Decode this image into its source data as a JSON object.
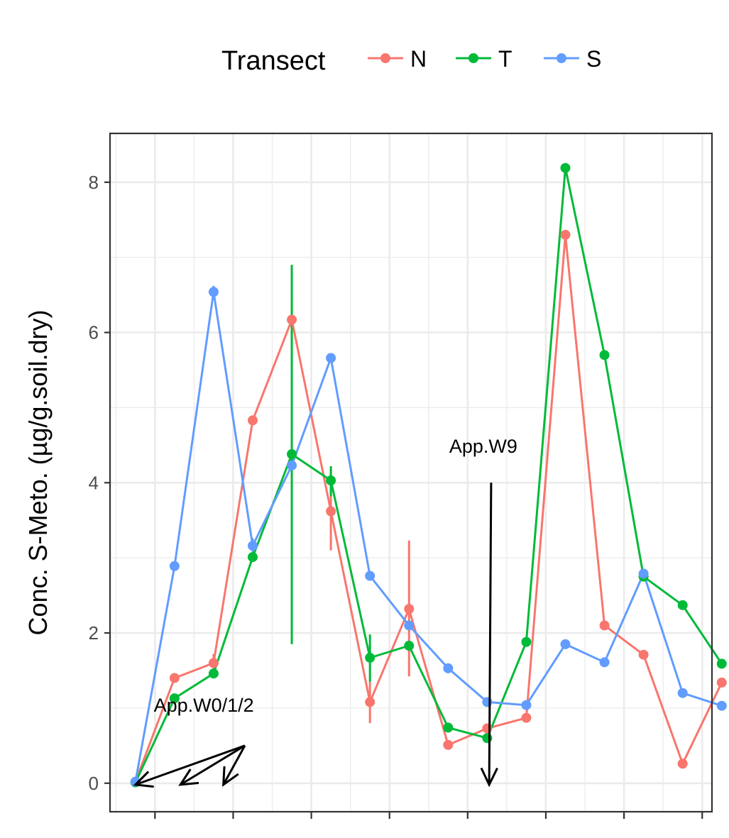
{
  "chart_data": {
    "type": "line",
    "ylabel": "Conc. S-Meto.  (µg/g.soil.dry)",
    "xlabel": "",
    "ylim": [
      -0.38,
      8.65
    ],
    "xlim": [
      0.35,
      15.75
    ],
    "yticks": [
      0,
      2,
      4,
      6,
      8
    ],
    "xticks": [
      1.5,
      3.5,
      5.5,
      7.5,
      9.5,
      11.5,
      13.5,
      15.5
    ],
    "grid": true,
    "legend": {
      "title": "Transect",
      "position": "top",
      "entries": [
        "N",
        "T",
        "S"
      ]
    },
    "colors": {
      "N": "#F8766D",
      "T": "#00BA38",
      "S": "#619CFF"
    },
    "series": [
      {
        "name": "N",
        "x": [
          1,
          2,
          3,
          4,
          5,
          6,
          7,
          8,
          9,
          10,
          11,
          12,
          13,
          14,
          15,
          16
        ],
        "y": [
          0.02,
          1.4,
          1.6,
          4.83,
          6.17,
          3.62,
          1.08,
          2.32,
          0.51,
          0.73,
          0.87,
          7.3,
          2.1,
          1.71,
          0.26,
          1.34
        ],
        "error": [
          null,
          null,
          [
            1.52,
            1.72
          ],
          null,
          [
            5.9,
            6.42
          ],
          [
            3.1,
            4.15
          ],
          [
            0.8,
            1.35
          ],
          [
            1.42,
            3.23
          ],
          null,
          null,
          null,
          null,
          null,
          null,
          null,
          null
        ]
      },
      {
        "name": "T",
        "x": [
          1,
          2,
          3,
          4,
          5,
          6,
          7,
          8,
          9,
          10,
          11,
          12,
          13,
          14,
          15,
          16
        ],
        "y": [
          0.01,
          1.13,
          1.46,
          3.01,
          4.38,
          4.03,
          1.67,
          1.83,
          0.74,
          0.6,
          1.88,
          8.19,
          5.7,
          2.75,
          2.37,
          1.59
        ],
        "error": [
          null,
          null,
          null,
          null,
          [
            1.85,
            6.9
          ],
          [
            3.82,
            4.22
          ],
          [
            1.35,
            1.98
          ],
          null,
          null,
          null,
          null,
          null,
          null,
          null,
          null,
          null
        ]
      },
      {
        "name": "S",
        "x": [
          1,
          2,
          3,
          4,
          5,
          6,
          7,
          8,
          9,
          10,
          11,
          12,
          13,
          14,
          15,
          16
        ],
        "y": [
          0.02,
          2.89,
          6.54,
          3.16,
          4.23,
          5.66,
          2.76,
          2.1,
          1.53,
          1.08,
          1.04,
          1.85,
          1.61,
          2.79,
          1.2,
          1.03
        ],
        "error": [
          null,
          null,
          [
            6.47,
            6.62
          ],
          [
            3.06,
            3.26
          ],
          null,
          null,
          null,
          null,
          null,
          null,
          null,
          null,
          null,
          null,
          null,
          null
        ]
      }
    ],
    "annotations": [
      {
        "label": "App.W0/1/2",
        "text_at": [
          2.75,
          0.95
        ],
        "arrows": [
          {
            "from": [
              3.8,
              0.5
            ],
            "to": [
              1.0,
              -0.02
            ]
          },
          {
            "from": [
              3.8,
              0.5
            ],
            "to": [
              2.15,
              -0.02
            ]
          },
          {
            "from": [
              3.8,
              0.5
            ],
            "to": [
              3.25,
              -0.02
            ]
          }
        ]
      },
      {
        "label": "App.W9",
        "text_at": [
          9.9,
          4.4
        ],
        "arrows": [
          {
            "from": [
              10.1,
              4.0
            ],
            "to": [
              10.05,
              -0.02
            ]
          }
        ]
      }
    ]
  }
}
